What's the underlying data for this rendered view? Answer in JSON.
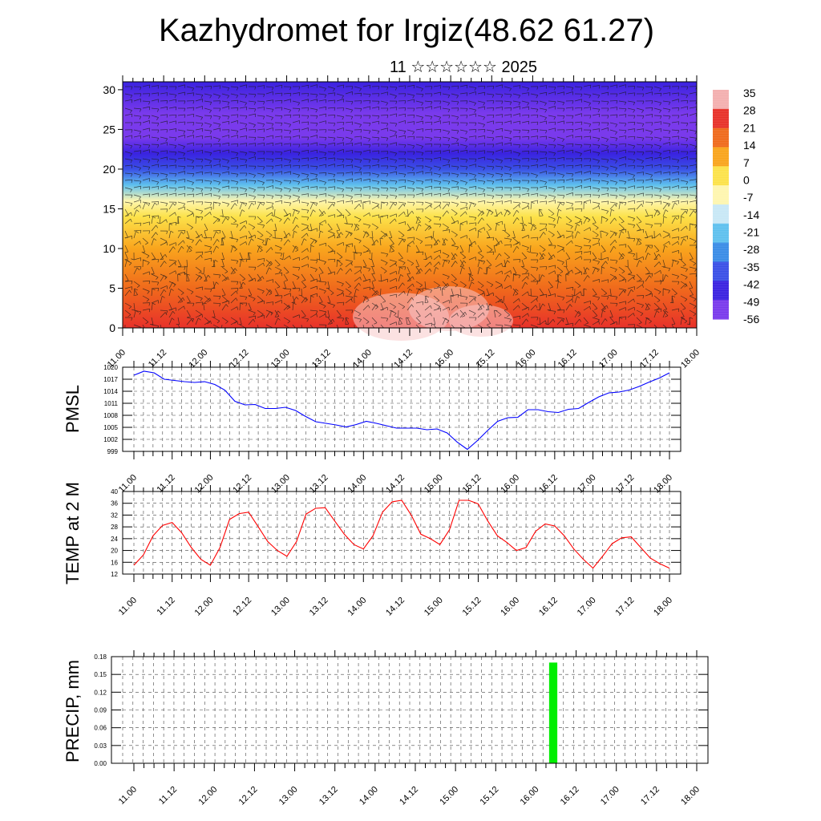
{
  "title": "Kazhydromet for Irgiz(48.62 61.27)",
  "subtitle": "11 ☆☆☆☆☆☆ 2025",
  "chart_data": [
    {
      "type": "heatmap",
      "name": "temperature-wind cross-section",
      "x_tick_labels": [
        "11.00",
        "11.12",
        "12.00",
        "12.12",
        "13.00",
        "13.12",
        "14.00",
        "14.12",
        "15.00",
        "15.12",
        "16.00",
        "16.12",
        "17.00",
        "17.12",
        "18.00"
      ],
      "y_ticks": [
        0,
        5,
        10,
        15,
        20,
        25,
        30
      ],
      "ylim": [
        0,
        31
      ],
      "colorbar": {
        "labels": [
          "35",
          "28",
          "21",
          "14",
          "7",
          "0",
          "-7",
          "-14",
          "-21",
          "-28",
          "-35",
          "-42",
          "-49",
          "-56"
        ],
        "range": [
          -60,
          37
        ],
        "colors": [
          "#f3b0b0",
          "#e8312a",
          "#f06a1c",
          "#f9a51d",
          "#fce24a",
          "#fef6b0",
          "#c8e8f6",
          "#5ec0ee",
          "#3a8ce6",
          "#3a50e6",
          "#3a22e0",
          "#7a3aec"
        ]
      },
      "levels_y": [
        0,
        5,
        10,
        14,
        16,
        18,
        20,
        22,
        24,
        27,
        31
      ],
      "level_temps": [
        28,
        20,
        10,
        0,
        -10,
        -25,
        -40,
        -55,
        -60,
        -58,
        -55
      ],
      "overlay": "wind barbs"
    },
    {
      "type": "line",
      "ylabel": "PMSL",
      "x_tick_labels": [
        "11.00",
        "11.12",
        "12.00",
        "12.12",
        "13.00",
        "13.12",
        "14.00",
        "14.12",
        "15.00",
        "15.12",
        "16.00",
        "16.12",
        "17.00",
        "17.12",
        "18.00"
      ],
      "y_ticks": [
        999,
        1002,
        1005,
        1008,
        1011,
        1014,
        1017,
        1020
      ],
      "ylim": [
        999,
        1020
      ],
      "series": [
        {
          "color": "#0000ff",
          "values": [
            1018,
            1019,
            1018.6,
            1017,
            1016.7,
            1016.4,
            1016.2,
            1016.4,
            1015.7,
            1014.3,
            1011.5,
            1010.6,
            1010.7,
            1009.7,
            1009.7,
            1010,
            1009.2,
            1007.7,
            1006.4,
            1006,
            1005.6,
            1005.1,
            1005.7,
            1006.5,
            1006,
            1005.4,
            1004.8,
            1004.8,
            1004.8,
            1004.4,
            1004.6,
            1003.6,
            1001.3,
            999.5,
            1001.7,
            1004.2,
            1006.5,
            1007.4,
            1007.5,
            1009.4,
            1009.4,
            1008.9,
            1008.7,
            1009.5,
            1009.7,
            1011.2,
            1012.6,
            1013.6,
            1013.8,
            1014.3,
            1015.2,
            1016.3,
            1017.3,
            1018.6
          ]
        }
      ]
    },
    {
      "type": "line",
      "ylabel": "TEMP at 2 M",
      "x_tick_labels": [
        "11.00",
        "11.12",
        "12.00",
        "12.12",
        "13.00",
        "13.12",
        "14.00",
        "14.12",
        "15.00",
        "15.12",
        "16.00",
        "16.12",
        "17.00",
        "17.12",
        "18.00"
      ],
      "y_ticks": [
        12,
        16,
        20,
        24,
        28,
        32,
        36,
        40
      ],
      "ylim": [
        12,
        40
      ],
      "series": [
        {
          "color": "#ff0000",
          "values": [
            15,
            18.5,
            25,
            28.5,
            29.5,
            26,
            21,
            17,
            15,
            21,
            30.5,
            32.5,
            33,
            28,
            23,
            20,
            18,
            23,
            32.3,
            34.3,
            34.5,
            30,
            25.5,
            22,
            20.5,
            25,
            33,
            36.5,
            37,
            32,
            25.5,
            24,
            22,
            27,
            37,
            37,
            35.8,
            30,
            25,
            22.7,
            20,
            21,
            26.5,
            29,
            28.3,
            25,
            20.5,
            17,
            14,
            18,
            22.3,
            24.3,
            24.6,
            21,
            17.4,
            15.5,
            14
          ]
        }
      ]
    },
    {
      "type": "bar",
      "ylabel": "PRECIP, mm",
      "x_tick_labels": [
        "11.00",
        "11.12",
        "12.00",
        "12.12",
        "13.00",
        "13.12",
        "14.00",
        "14.12",
        "15.00",
        "15.12",
        "16.00",
        "16.12",
        "17.00",
        "17.12",
        "18.00"
      ],
      "y_ticks": [
        "0.00",
        "0.03",
        "0.06",
        "0.09",
        "0.12",
        "0.15",
        "0.18"
      ],
      "ylim": [
        0,
        0.18
      ],
      "bars": [
        {
          "x_from_day": 16.2,
          "x_to_day": 16.3,
          "value": 0.17,
          "color": "#00ee00"
        }
      ]
    }
  ]
}
